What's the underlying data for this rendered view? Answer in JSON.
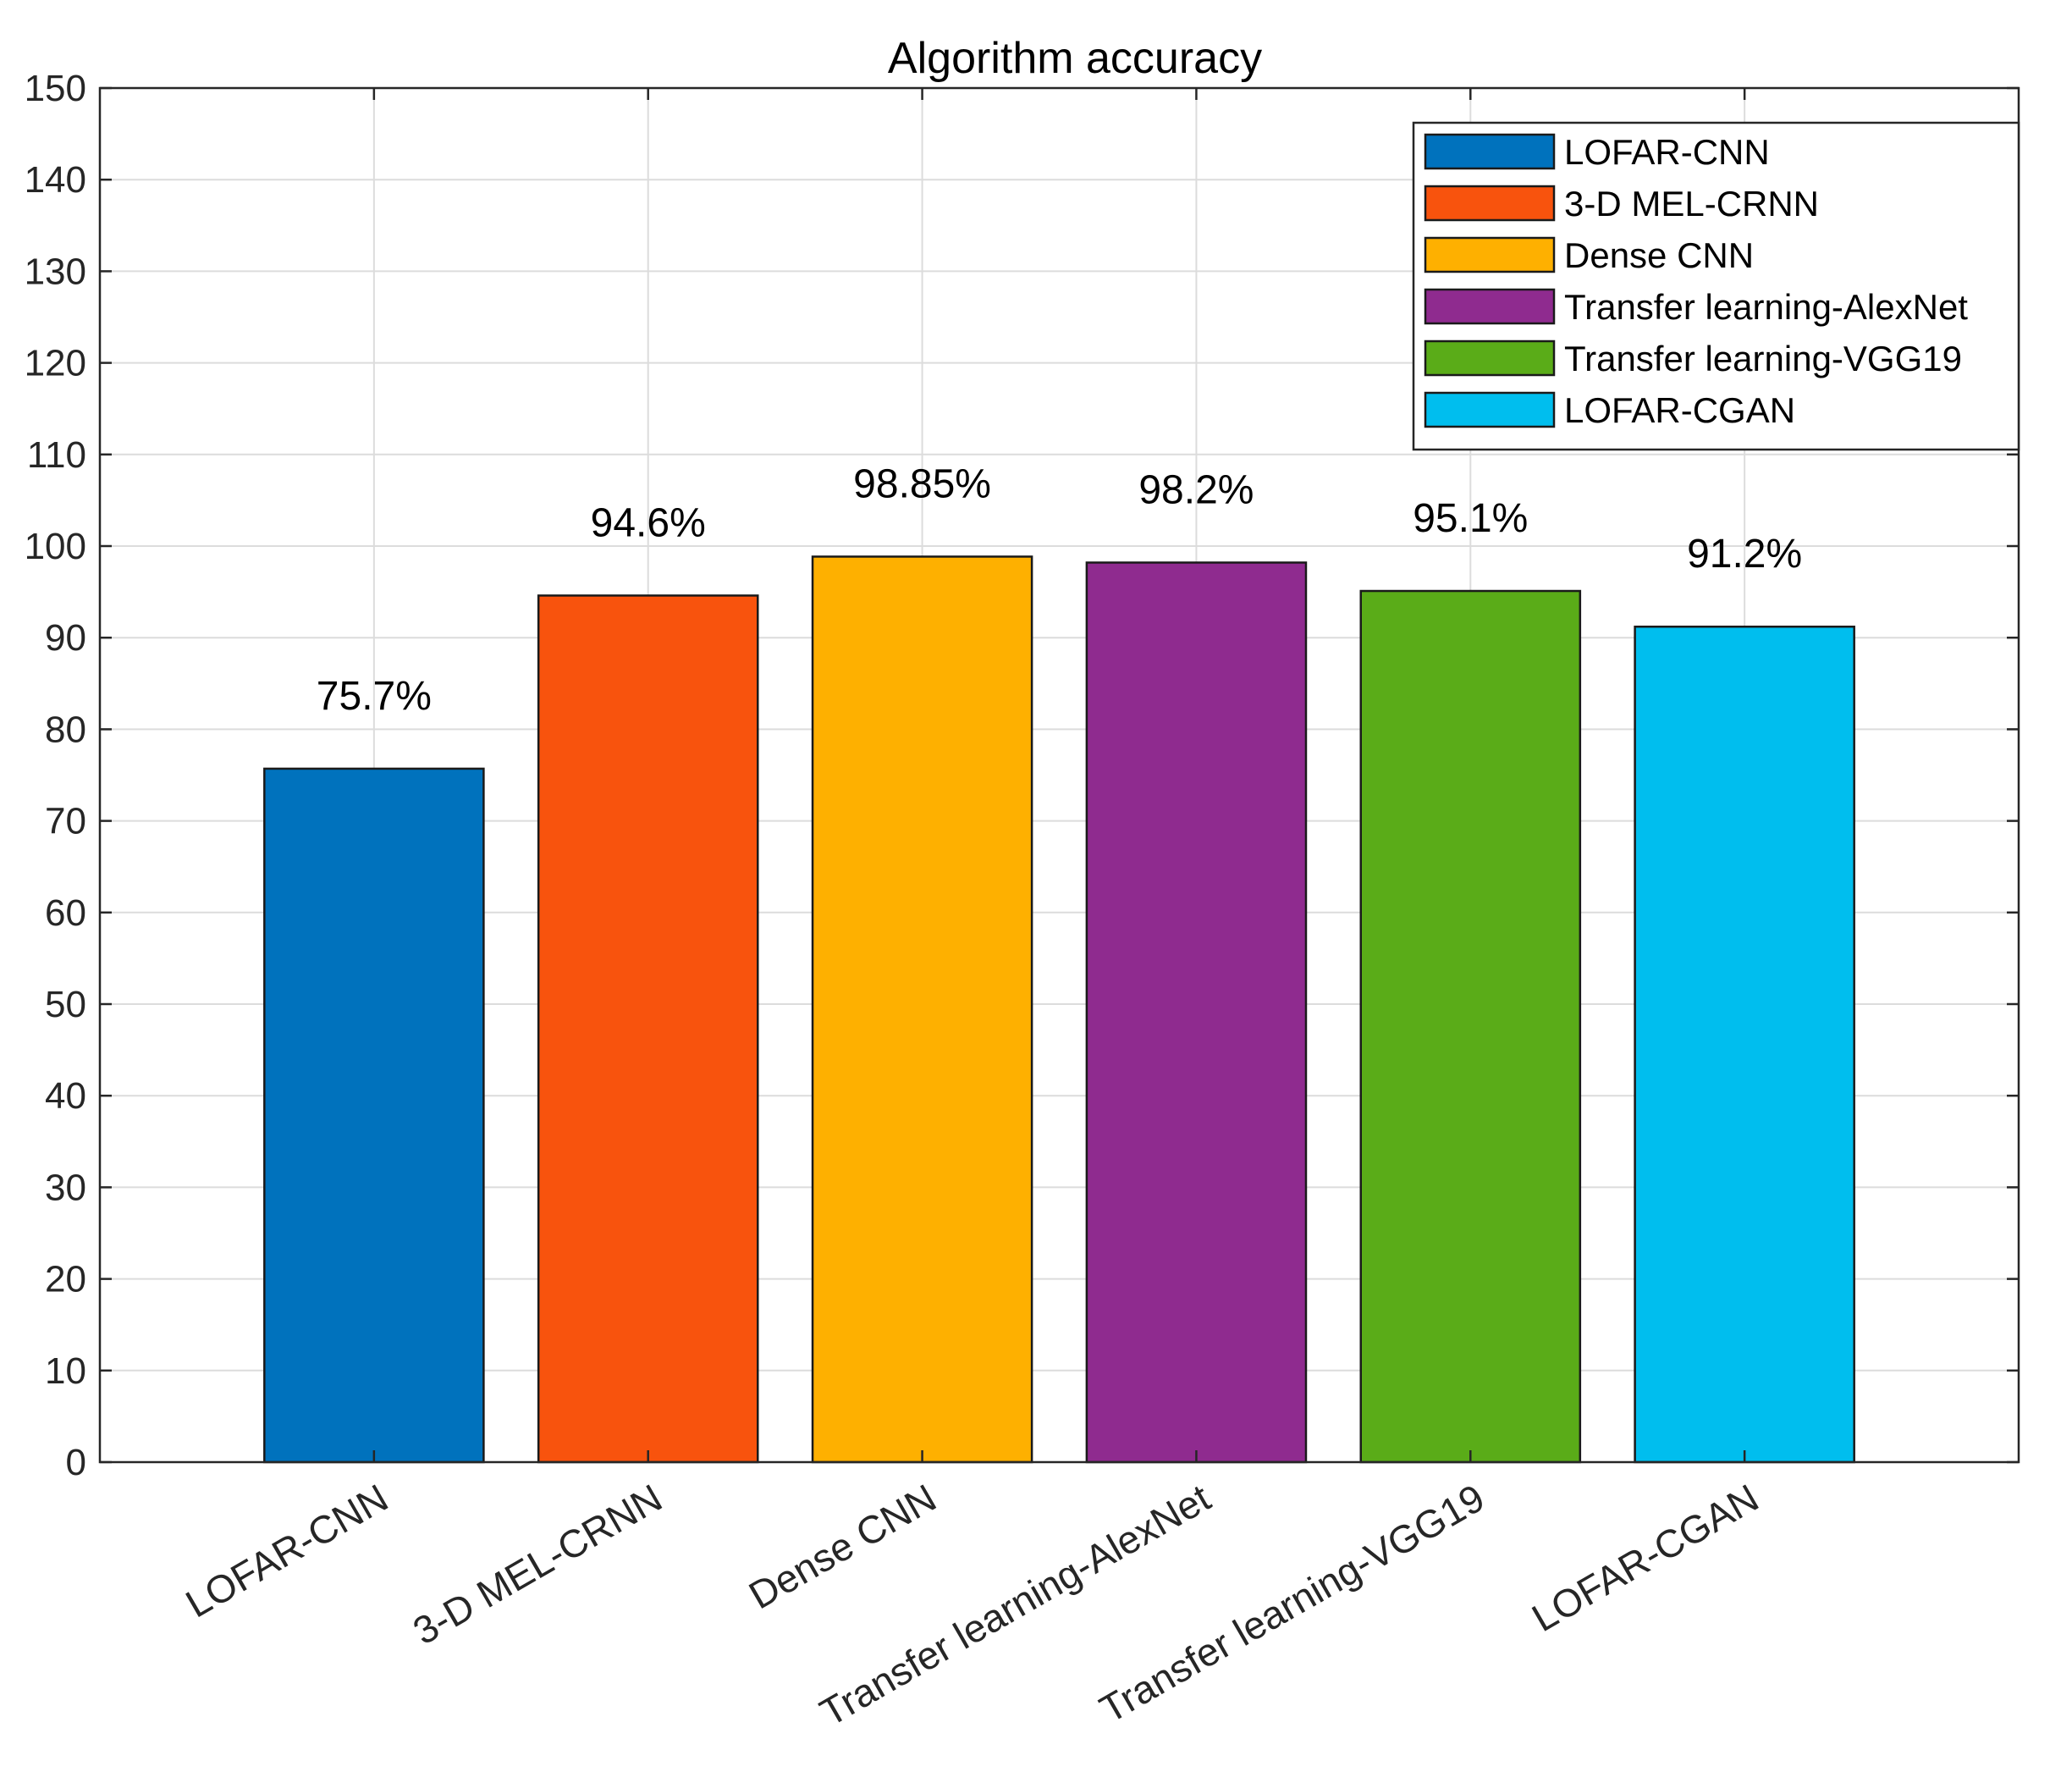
{
  "chart_data": {
    "type": "bar",
    "title": "Algorithm accuracy",
    "xlabel": "",
    "ylabel": "",
    "ylim": [
      0,
      150
    ],
    "yticks": [
      0,
      10,
      20,
      30,
      40,
      50,
      60,
      70,
      80,
      90,
      100,
      110,
      120,
      130,
      140,
      150
    ],
    "ytick_labels": [
      "0",
      "10",
      "20",
      "30",
      "40",
      "50",
      "60",
      "70",
      "80",
      "90",
      "100",
      "110",
      "120",
      "130",
      "140",
      "150"
    ],
    "grid": true,
    "legend_position": "top-right",
    "categories": [
      "LOFAR-CNN",
      "3-D MEL-CRNN",
      "Dense CNN",
      "Transfer learning-AlexNet",
      "Transfer learning-VGG19",
      "LOFAR-CGAN"
    ],
    "values": [
      75.7,
      94.6,
      98.85,
      98.2,
      95.1,
      91.2
    ],
    "data_labels": [
      "75.7%",
      "94.6%",
      "98.85%",
      "98.2%",
      "95.1%",
      "91.2%"
    ],
    "colors": [
      "#0072BD",
      "#F8530D",
      "#FEB000",
      "#8F2B8F",
      "#5AAC18",
      "#00BEEE"
    ],
    "legend": [
      "LOFAR-CNN",
      "3-D MEL-CRNN",
      "Dense CNN",
      "Transfer learning-AlexNet",
      "Transfer learning-VGG19",
      "LOFAR-CGAN"
    ]
  }
}
